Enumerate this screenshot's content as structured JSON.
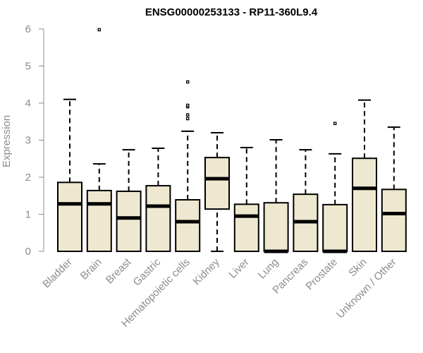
{
  "chart_data": {
    "type": "boxplot",
    "title": "ENSG00000253133 - RP11-360L9.4",
    "ylabel": "Expression",
    "xlabel": "",
    "ylim": [
      0,
      6
    ],
    "yticks": [
      0,
      1,
      2,
      3,
      4,
      5,
      6
    ],
    "box_color": "#efe8d0",
    "categories": [
      "Bladder",
      "Brain",
      "Breast",
      "Gastric",
      "Hematopoietic cells",
      "Kidney",
      "Liver",
      "Lung",
      "Pancreas",
      "Prostate",
      "Skin",
      "Unknown / Other"
    ],
    "boxes": [
      {
        "whisker_low": 0,
        "q1": 0,
        "median": 1.28,
        "q3": 1.86,
        "whisker_high": 4.1,
        "outliers": []
      },
      {
        "whisker_low": 0,
        "q1": 0,
        "median": 1.28,
        "q3": 1.64,
        "whisker_high": 2.36,
        "outliers": [
          5.98
        ]
      },
      {
        "whisker_low": 0,
        "q1": 0,
        "median": 0.9,
        "q3": 1.62,
        "whisker_high": 2.74,
        "outliers": []
      },
      {
        "whisker_low": 0,
        "q1": 0,
        "median": 1.22,
        "q3": 1.77,
        "whisker_high": 2.78,
        "outliers": []
      },
      {
        "whisker_low": 0,
        "q1": 0,
        "median": 0.8,
        "q3": 1.39,
        "whisker_high": 3.24,
        "outliers": [
          3.58,
          3.68,
          3.9,
          3.94,
          4.57
        ]
      },
      {
        "whisker_low": 0,
        "q1": 1.14,
        "median": 1.96,
        "q3": 2.53,
        "whisker_high": 3.2,
        "outliers": []
      },
      {
        "whisker_low": 0,
        "q1": 0,
        "median": 0.95,
        "q3": 1.27,
        "whisker_high": 2.8,
        "outliers": []
      },
      {
        "whisker_low": 0,
        "q1": 0,
        "median": 0.0,
        "q3": 1.31,
        "whisker_high": 3.01,
        "outliers": []
      },
      {
        "whisker_low": 0,
        "q1": 0,
        "median": 0.8,
        "q3": 1.54,
        "whisker_high": 2.74,
        "outliers": []
      },
      {
        "whisker_low": 0,
        "q1": 0,
        "median": 0.0,
        "q3": 1.26,
        "whisker_high": 2.63,
        "outliers": [
          3.45
        ]
      },
      {
        "whisker_low": 0,
        "q1": 0,
        "median": 1.7,
        "q3": 2.51,
        "whisker_high": 4.08,
        "outliers": []
      },
      {
        "whisker_low": 0,
        "q1": 0,
        "median": 1.02,
        "q3": 1.67,
        "whisker_high": 3.35,
        "outliers": []
      }
    ],
    "grid": false,
    "legend": "none"
  }
}
